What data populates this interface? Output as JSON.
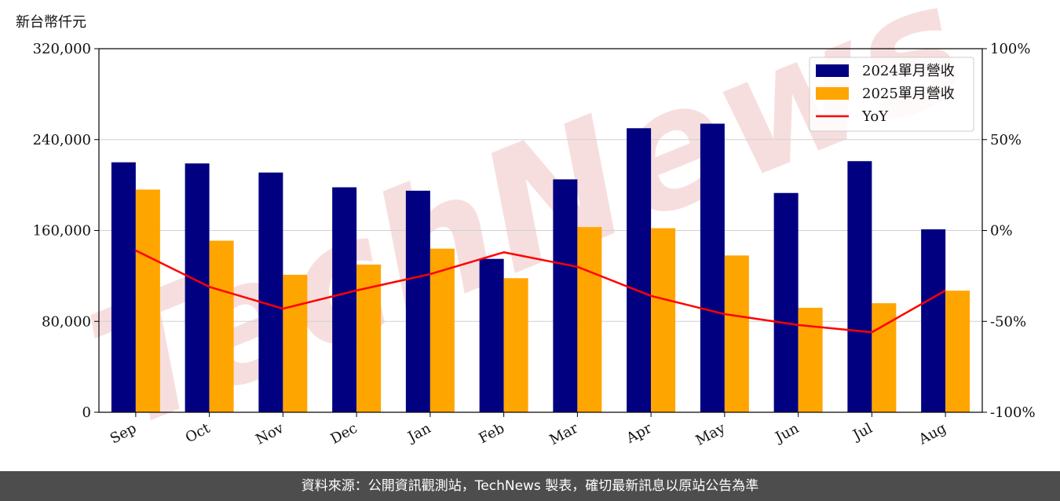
{
  "footer": {
    "text": "資料來源：公開資訊觀測站，TechNews 製表，確切最新訊息以原站公告為準"
  },
  "watermark": {
    "text": "TechNews"
  },
  "colors": {
    "series_2024": "#000080",
    "series_2025": "#ffa500",
    "yoy": "#ff0000",
    "grid": "#d0d0d0",
    "watermark": "#f2c4c4"
  },
  "chart_data": {
    "type": "bar",
    "ylabel": "新台幣仟元",
    "categories": [
      "Sep",
      "Oct",
      "Nov",
      "Dec",
      "Jan",
      "Feb",
      "Mar",
      "Apr",
      "May",
      "Jun",
      "Jul",
      "Aug"
    ],
    "series": [
      {
        "name": "2024單月營收",
        "axis": "left",
        "values": [
          220000,
          219000,
          211000,
          198000,
          195000,
          135000,
          205000,
          250000,
          254000,
          193000,
          221000,
          161000
        ]
      },
      {
        "name": "2025單月營收",
        "axis": "left",
        "values": [
          196000,
          151000,
          121000,
          130000,
          144000,
          118000,
          163000,
          162000,
          138000,
          92000,
          96000,
          107000
        ]
      },
      {
        "name": "YoY",
        "axis": "right",
        "type": "line",
        "values": [
          -11,
          -31,
          -43,
          -33,
          -24,
          -12,
          -20,
          -36,
          -46,
          -52,
          -56,
          -33
        ]
      }
    ],
    "ylim_left": [
      0,
      320000
    ],
    "yticks_left": [
      "0",
      "80,000",
      "160,000",
      "240,000",
      "320,000"
    ],
    "ylim_right": [
      -100,
      100
    ],
    "yticks_right": [
      "-100%",
      "-50%",
      "0%",
      "50%",
      "100%"
    ],
    "grid": "horizontal",
    "legend_position": "top-right"
  }
}
